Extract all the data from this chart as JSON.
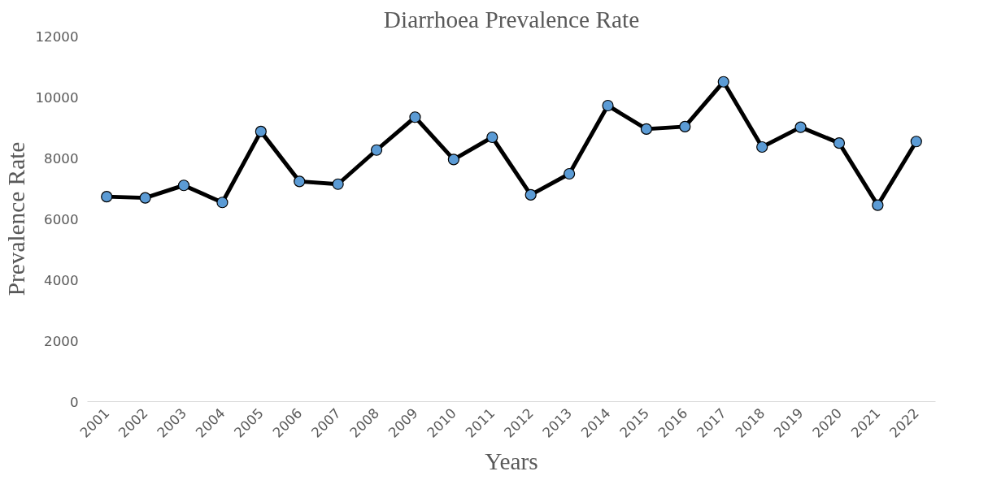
{
  "chart_data": {
    "type": "line",
    "title": "Diarrhoea Prevalence Rate",
    "xlabel": "Years",
    "ylabel": "Prevalence Rate",
    "categories": [
      "2001",
      "2002",
      "2003",
      "2004",
      "2005",
      "2006",
      "2007",
      "2008",
      "2009",
      "2010",
      "2011",
      "2012",
      "2013",
      "2014",
      "2015",
      "2016",
      "2017",
      "2018",
      "2019",
      "2020",
      "2021",
      "2022"
    ],
    "series": [
      {
        "color": "#000000",
        "values": [
          6730,
          6690,
          7100,
          6540,
          8870,
          7230,
          7140,
          8260,
          9340,
          7950,
          8680,
          6790,
          7480,
          9720,
          8950,
          9030,
          10500,
          8360,
          9010,
          8490,
          6450,
          8540
        ]
      }
    ],
    "marker": "circle",
    "line_style": "solid",
    "ylim": [
      0,
      12000
    ],
    "yticks": [
      0,
      2000,
      4000,
      6000,
      8000,
      10000,
      12000
    ],
    "grid": false
  }
}
